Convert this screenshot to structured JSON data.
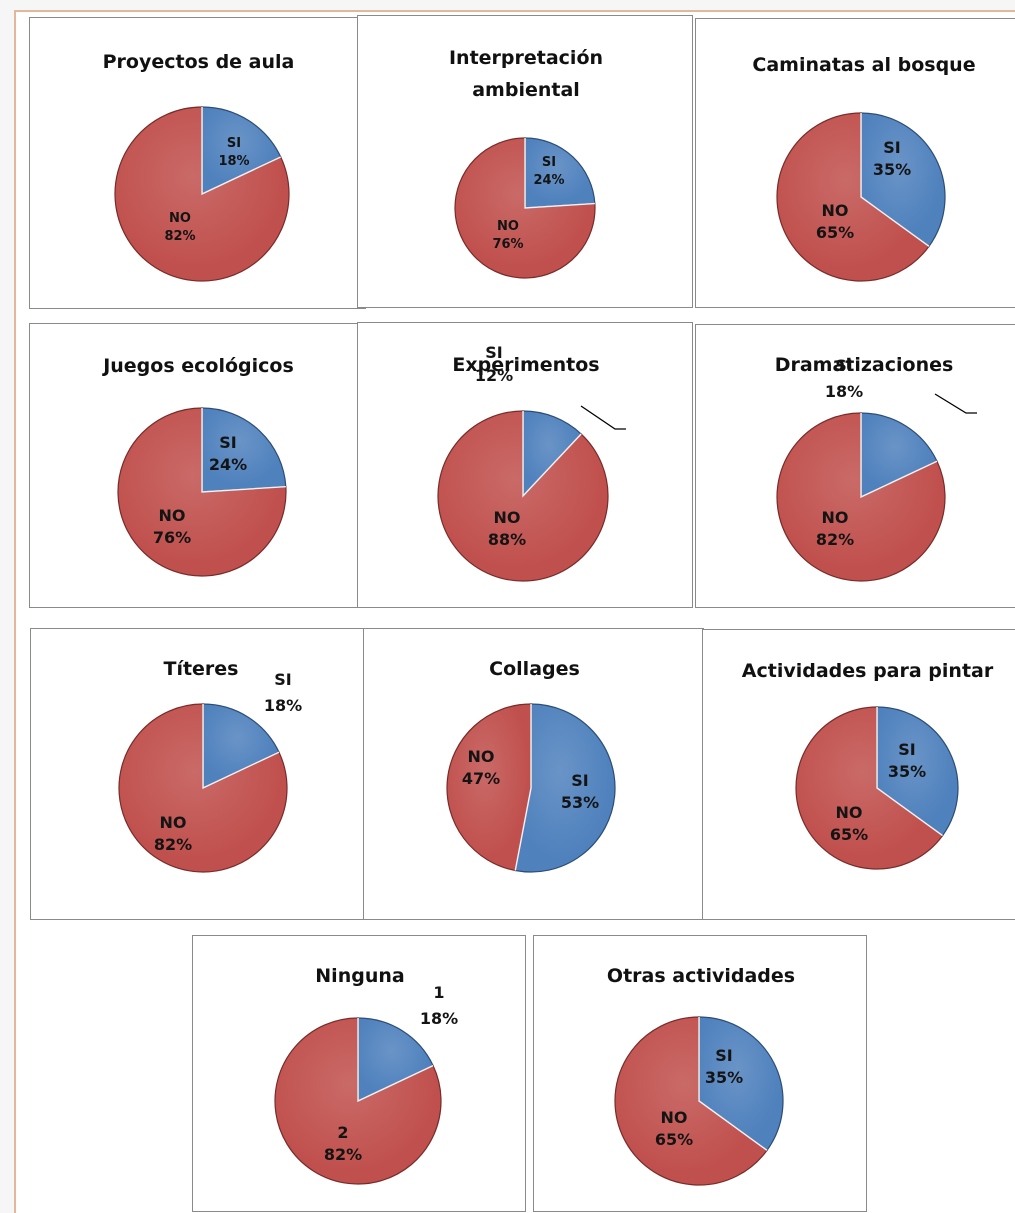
{
  "colors": {
    "si": "#4f81bd",
    "si_edge": "#2c4d75",
    "no": "#c0504d",
    "no_edge": "#772c2a"
  },
  "chart_data": [
    {
      "type": "pie",
      "title": [
        "Proyectos de aula"
      ],
      "slices": [
        {
          "label": "SI",
          "value": 18,
          "value_label": "18%",
          "color": "#4f81bd"
        },
        {
          "label": "NO",
          "value": 82,
          "value_label": "82%",
          "color": "#c0504d"
        }
      ]
    },
    {
      "type": "pie",
      "title": [
        "Interpretación",
        "ambiental"
      ],
      "slices": [
        {
          "label": "SI",
          "value": 24,
          "value_label": "24%",
          "color": "#4f81bd"
        },
        {
          "label": "NO",
          "value": 76,
          "value_label": "76%",
          "color": "#c0504d"
        }
      ]
    },
    {
      "type": "pie",
      "title": [
        "Caminatas al bosque"
      ],
      "slices": [
        {
          "label": "SI",
          "value": 35,
          "value_label": "35%",
          "color": "#4f81bd"
        },
        {
          "label": "NO",
          "value": 65,
          "value_label": "65%",
          "color": "#c0504d"
        }
      ]
    },
    {
      "type": "pie",
      "title": [
        "Juegos ecológicos"
      ],
      "slices": [
        {
          "label": "SI",
          "value": 24,
          "value_label": "24%",
          "color": "#4f81bd"
        },
        {
          "label": "NO",
          "value": 76,
          "value_label": "76%",
          "color": "#c0504d"
        }
      ]
    },
    {
      "type": "pie",
      "title": [
        "Experimentos"
      ],
      "slices": [
        {
          "label": "SI",
          "value": 12,
          "value_label": "12%",
          "color": "#4f81bd"
        },
        {
          "label": "NO",
          "value": 88,
          "value_label": "88%",
          "color": "#c0504d"
        }
      ]
    },
    {
      "type": "pie",
      "title": [
        "Dramatizaciones"
      ],
      "slices": [
        {
          "label": "SI",
          "value": 18,
          "value_label": "18%",
          "color": "#4f81bd"
        },
        {
          "label": "NO",
          "value": 82,
          "value_label": "82%",
          "color": "#c0504d"
        }
      ]
    },
    {
      "type": "pie",
      "title": [
        "Títeres"
      ],
      "slices": [
        {
          "label": "SI",
          "value": 18,
          "value_label": "18%",
          "color": "#4f81bd"
        },
        {
          "label": "NO",
          "value": 82,
          "value_label": "82%",
          "color": "#c0504d"
        }
      ]
    },
    {
      "type": "pie",
      "title": [
        "Collages"
      ],
      "slices": [
        {
          "label": "SI",
          "value": 53,
          "value_label": "53%",
          "color": "#4f81bd"
        },
        {
          "label": "NO",
          "value": 47,
          "value_label": "47%",
          "color": "#c0504d"
        }
      ]
    },
    {
      "type": "pie",
      "title": [
        "Actividades para pintar"
      ],
      "slices": [
        {
          "label": "SI",
          "value": 35,
          "value_label": "35%",
          "color": "#4f81bd"
        },
        {
          "label": "NO",
          "value": 65,
          "value_label": "65%",
          "color": "#c0504d"
        }
      ]
    },
    {
      "type": "pie",
      "title": [
        "Ninguna"
      ],
      "slices": [
        {
          "label": "1",
          "value": 18,
          "value_label": "18%",
          "color": "#4f81bd"
        },
        {
          "label": "2",
          "value": 82,
          "value_label": "82%",
          "color": "#c0504d"
        }
      ]
    },
    {
      "type": "pie",
      "title": [
        "Otras actividades"
      ],
      "slices": [
        {
          "label": "SI",
          "value": 35,
          "value_label": "35%",
          "color": "#4f81bd"
        },
        {
          "label": "NO",
          "value": 65,
          "value_label": "65%",
          "color": "#c0504d"
        }
      ]
    }
  ]
}
